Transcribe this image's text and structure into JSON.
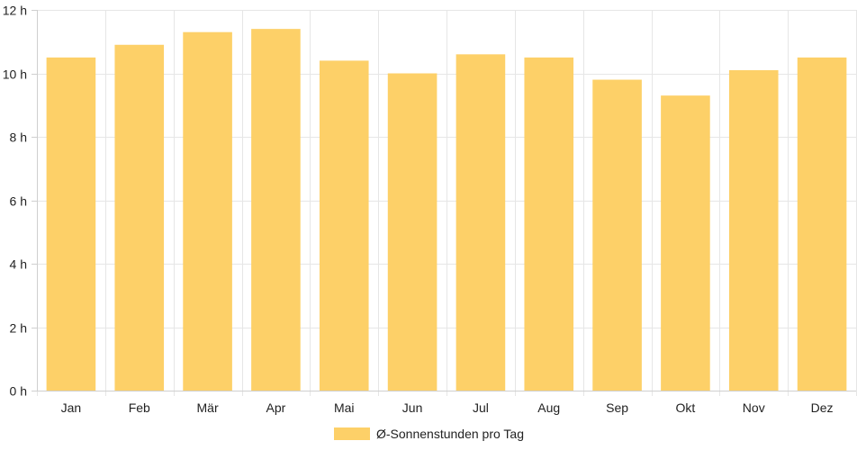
{
  "chart_data": {
    "type": "bar",
    "categories": [
      "Jan",
      "Feb",
      "Mär",
      "Apr",
      "Mai",
      "Jun",
      "Jul",
      "Aug",
      "Sep",
      "Okt",
      "Nov",
      "Dez"
    ],
    "series": [
      {
        "name": "Ø-Sonnenstunden pro Tag",
        "values": [
          10.5,
          10.9,
          11.3,
          11.4,
          10.4,
          10.0,
          10.6,
          10.5,
          9.8,
          9.3,
          10.1,
          10.5
        ],
        "color": "#fdd068"
      }
    ],
    "title": "",
    "xlabel": "",
    "ylabel": "",
    "ylim": [
      0,
      12
    ],
    "yticks": [
      0,
      2,
      4,
      6,
      8,
      10,
      12
    ],
    "ytick_labels": [
      "0 h",
      "2 h",
      "4 h",
      "6 h",
      "8 h",
      "10 h",
      "12 h"
    ],
    "grid": true,
    "legend_position": "bottom-center"
  }
}
